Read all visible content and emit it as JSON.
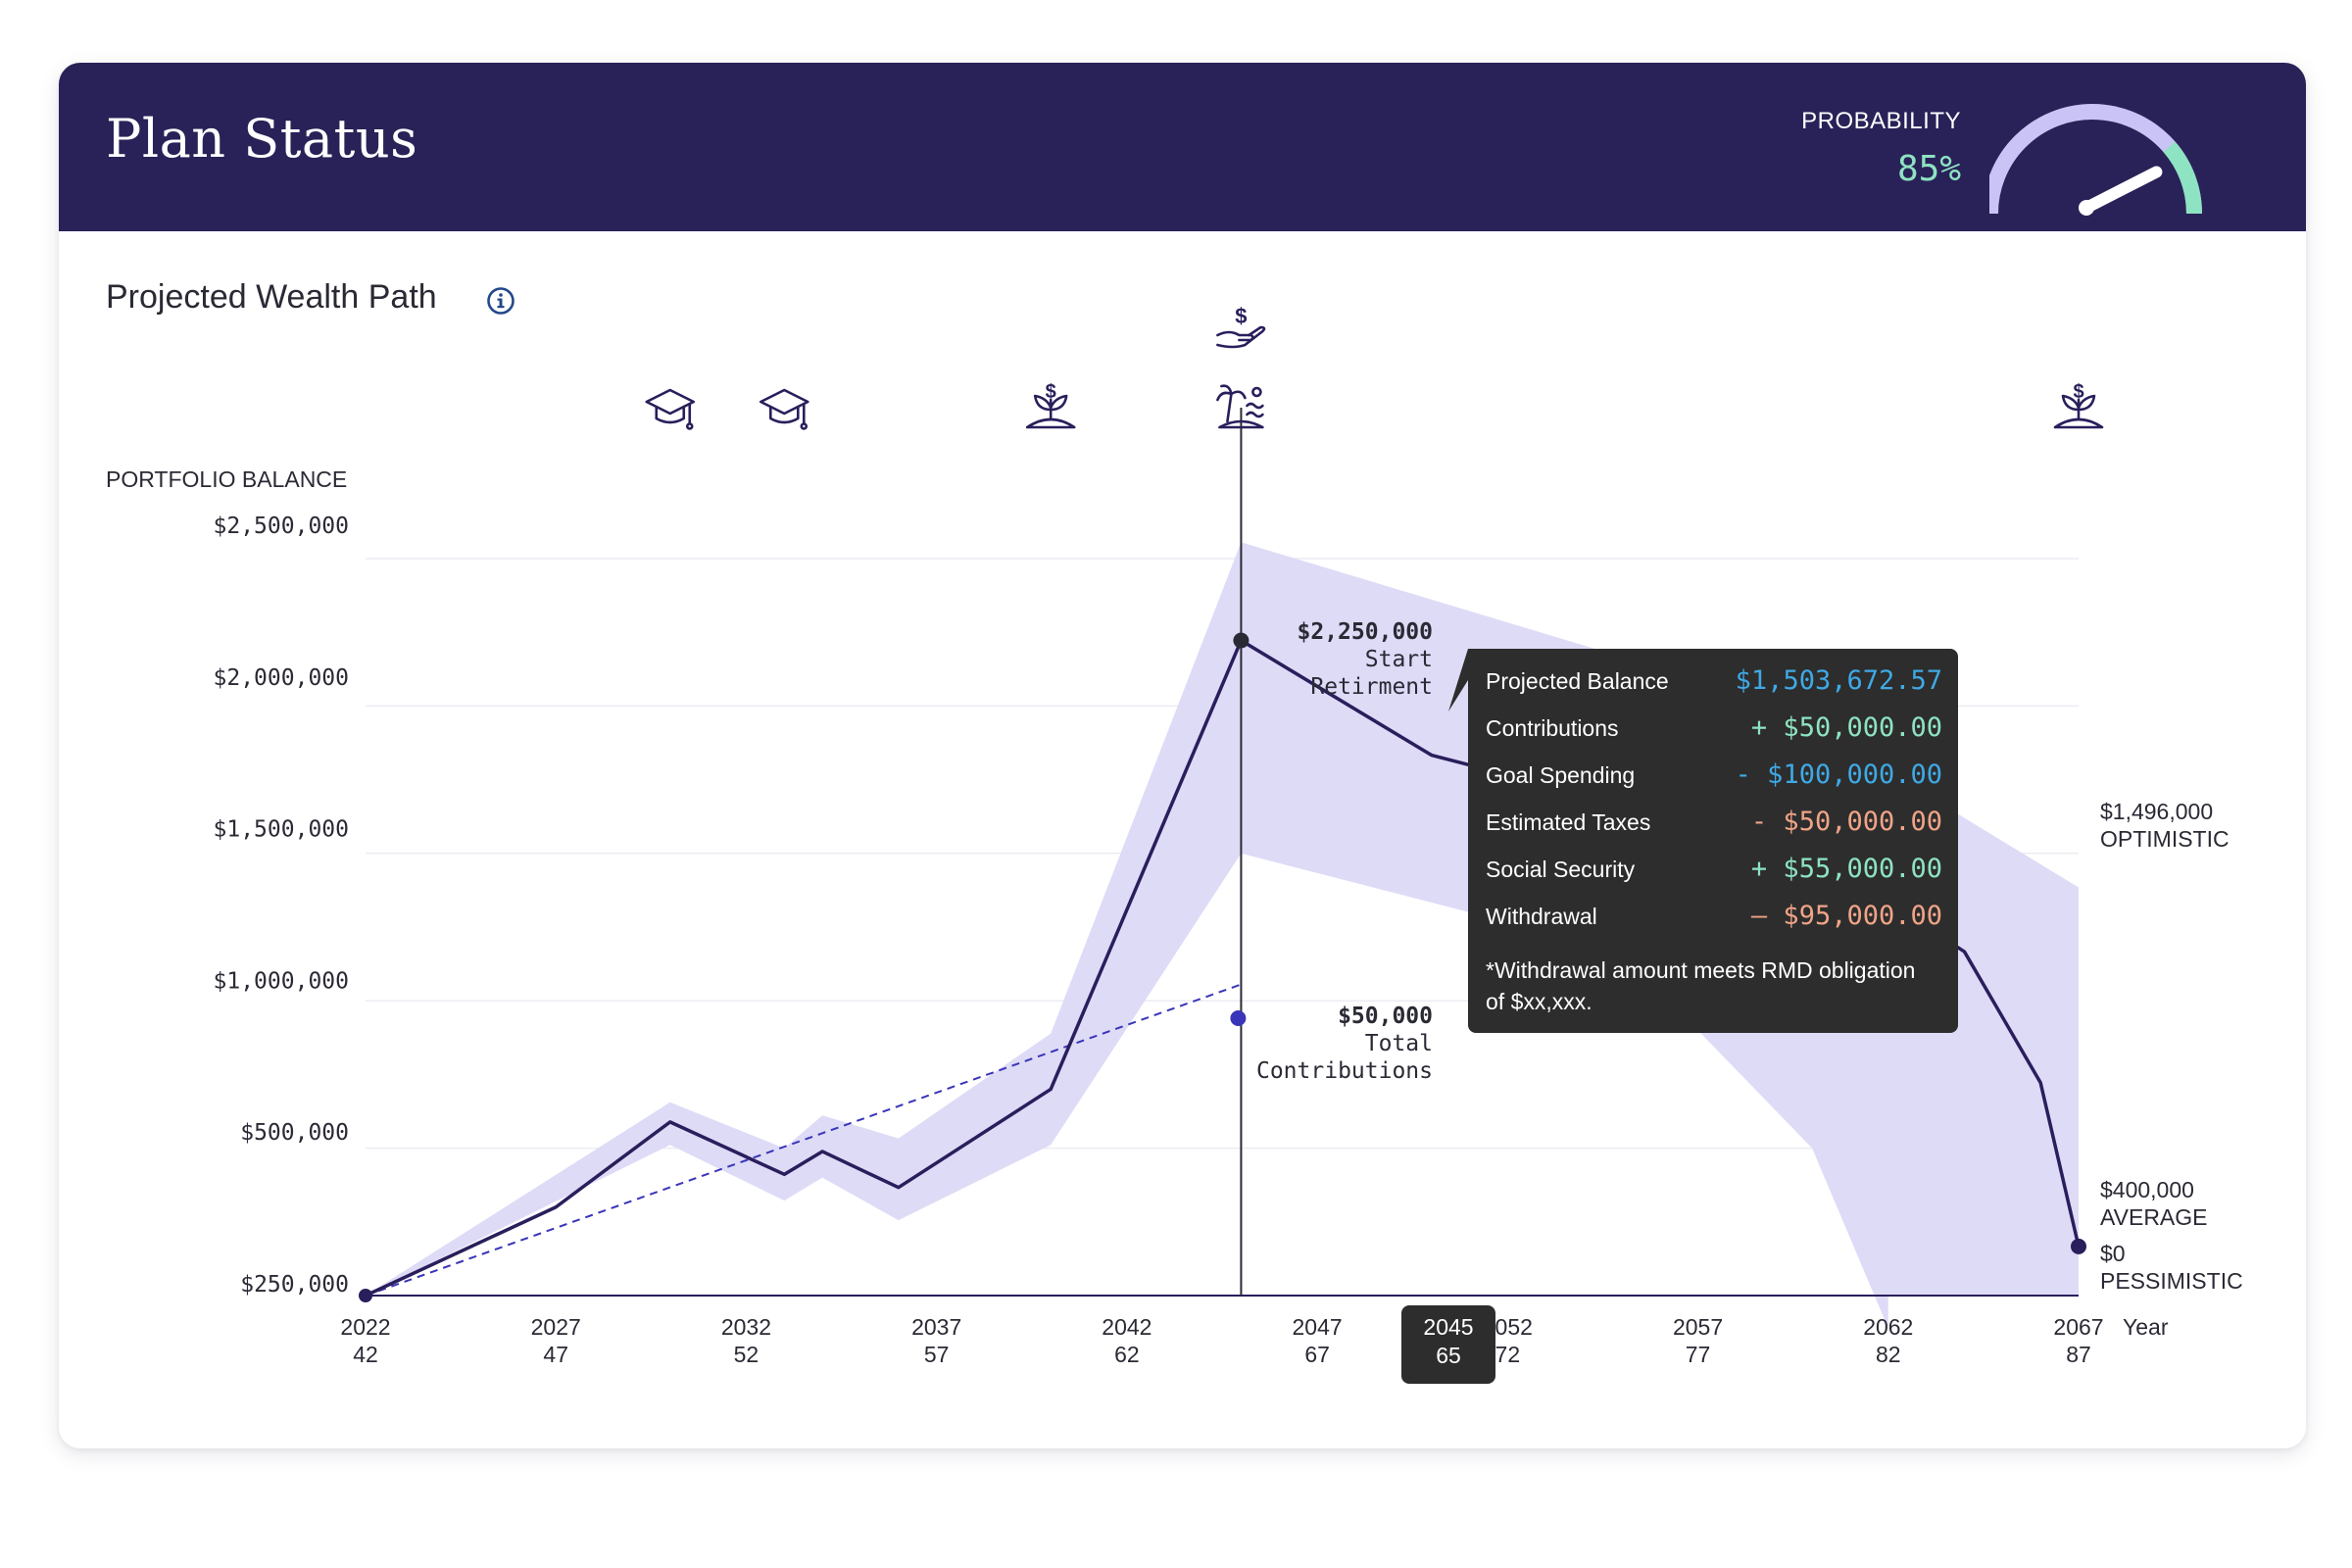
{
  "header": {
    "title": "Plan Status",
    "probability_label": "PROBABILITY",
    "probability_value": "85%",
    "probability_fraction": 0.85
  },
  "section": {
    "title": "Projected Wealth Path",
    "info_icon": "info-icon"
  },
  "event_icons": [
    {
      "name": "graduation-cap-icon",
      "year": 2030
    },
    {
      "name": "graduation-cap-icon",
      "year": 2033
    },
    {
      "name": "money-plant-icon",
      "year": 2040
    },
    {
      "name": "hand-dollar-icon",
      "year": 2045
    },
    {
      "name": "beach-retirement-icon",
      "year": 2045
    },
    {
      "name": "money-plant-icon",
      "year": 2067
    }
  ],
  "tooltip": {
    "rows": [
      {
        "label": "Projected Balance",
        "value": "$1,503,672.57",
        "color": "#3fa9e6"
      },
      {
        "label": "Contributions",
        "value": "+ $50,000.00",
        "color": "#8ee3c2"
      },
      {
        "label": "Goal Spending",
        "value": "- $100,000.00",
        "color": "#3fa9e6"
      },
      {
        "label": "Estimated Taxes",
        "value": "- $50,000.00",
        "color": "#f0a488"
      },
      {
        "label": "Social Security",
        "value": "+ $55,000.00",
        "color": "#8ee3c2"
      },
      {
        "label": "Withdrawal",
        "value": "– $95,000.00",
        "color": "#f0a488"
      }
    ],
    "note_line1": "*Withdrawal amount meets RMD obligation",
    "note_line2": "of $xx,xxx."
  },
  "colors": {
    "navy": "#292258",
    "band": "#dedbf7",
    "line": "#2a1e5c",
    "contrib": "#3a35b8",
    "gauge_track": "#c9c4f5",
    "gauge_accent": "#8ee3c2"
  },
  "chart_data": {
    "type": "line",
    "ylabel": "PORTFOLIO BALANCE",
    "y_ticks": [
      "$2,500,000",
      "$2,000,000",
      "$1,500,000",
      "$1,000,000",
      "$500,000",
      "$250,000"
    ],
    "x_ticks": [
      {
        "year": "2022",
        "age": "42"
      },
      {
        "year": "2027",
        "age": "47"
      },
      {
        "year": "2032",
        "age": "52"
      },
      {
        "year": "2037",
        "age": "57"
      },
      {
        "year": "2042",
        "age": "62"
      },
      {
        "year": "2047",
        "age": "67"
      },
      {
        "year": "2052",
        "age": "72"
      },
      {
        "year": "2057",
        "age": "77"
      },
      {
        "year": "2062",
        "age": "82"
      },
      {
        "year": "2067",
        "age": "87"
      }
    ],
    "x_axis_label": "Year",
    "x_range": [
      2022,
      2067
    ],
    "y_range": [
      250000,
      2500000
    ],
    "series": [
      {
        "values": [
          [
            2022,
            250000
          ],
          [
            2027,
            520000
          ],
          [
            2030,
            780000
          ],
          [
            2033,
            620000
          ],
          [
            2034,
            690000
          ],
          [
            2036,
            580000
          ],
          [
            2040,
            880000
          ],
          [
            2045,
            2250000
          ],
          [
            2050,
            1900000
          ],
          [
            2055,
            1750000
          ],
          [
            2060,
            1600000
          ],
          [
            2064,
            1300000
          ],
          [
            2066,
            900000
          ],
          [
            2067,
            400000
          ]
        ]
      },
      {
        "values": [
          [
            2022,
            250000
          ],
          [
            2045,
            1200000
          ]
        ]
      }
    ],
    "band": {
      "upper": [
        [
          2022,
          250000
        ],
        [
          2030,
          840000
        ],
        [
          2033,
          700000
        ],
        [
          2034,
          800000
        ],
        [
          2036,
          730000
        ],
        [
          2040,
          1050000
        ],
        [
          2045,
          2550000
        ],
        [
          2055,
          2200000
        ],
        [
          2062,
          1850000
        ],
        [
          2067,
          1496000
        ]
      ],
      "lower": [
        [
          2022,
          250000
        ],
        [
          2030,
          710000
        ],
        [
          2033,
          540000
        ],
        [
          2034,
          610000
        ],
        [
          2036,
          480000
        ],
        [
          2040,
          710000
        ],
        [
          2045,
          1600000
        ],
        [
          2055,
          1300000
        ],
        [
          2060,
          700000
        ],
        [
          2062,
          150000
        ]
      ]
    },
    "annotations": [
      {
        "value": "$2,250,000",
        "line1": "Start",
        "line2": "Retirment",
        "x": 2045,
        "y": 2250000
      },
      {
        "value": "$50,000",
        "line1": "Total",
        "line2": "Contributions",
        "x": 2045,
        "y": 950000
      }
    ],
    "end_labels": [
      {
        "value": "$1,496,000",
        "label": "OPTIMISTIC"
      },
      {
        "value": "$400,000",
        "label": "AVERAGE"
      },
      {
        "value": "$0",
        "label": "PESSIMISTIC"
      }
    ],
    "cursor": {
      "year": "2045",
      "age": "65"
    }
  }
}
